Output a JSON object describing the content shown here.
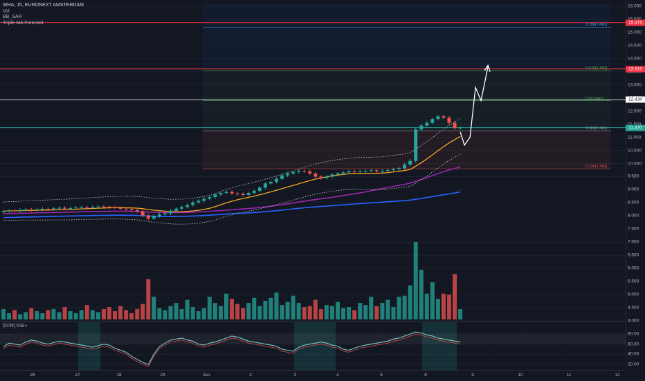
{
  "legend": {
    "symbol": "WHA, 1h, EURONEXT AMSTERDAM",
    "vol": "Vol",
    "bb_sar": "BB_SAR",
    "triple_ma": "Triple MA Forecast",
    "rsi": "[D7R] RSI+"
  },
  "colors": {
    "background": "#131722",
    "up": "#26a69a",
    "down": "#ef5350",
    "orange_ma": "#f5a623",
    "purple_ma": "#9c27b0",
    "blue_ma": "#2962ff",
    "resistance_line": "#f23645",
    "fib_line": "#4caf50"
  },
  "price_axis": {
    "ticks": [
      "16.000",
      "15.500",
      "15.000",
      "14.500",
      "14.000",
      "13.500",
      "13.000",
      "12.500",
      "12.000",
      "11.500",
      "11.000",
      "10.500",
      "10.000",
      "9.500",
      "9.000",
      "8.500",
      "8.000",
      "7.500",
      "7.000",
      "6.500",
      "6.000",
      "5.500",
      "5.000",
      "4.500",
      "4.000"
    ],
    "badges": [
      {
        "label": "15.375",
        "color": "#f23645",
        "price": 15.375
      },
      {
        "label": "13.610",
        "color": "#f23645",
        "price": 13.61
      },
      {
        "label": "12.430",
        "color": "#ffffff",
        "text": "#131722",
        "price": 12.43
      },
      {
        "label": "11.370",
        "color": "#26a69a",
        "price": 11.37
      }
    ]
  },
  "rsi_axis": {
    "ticks": [
      "80.00",
      "60.00",
      "40.00",
      "20.00"
    ]
  },
  "time_axis": {
    "labels": [
      "26",
      "27",
      "28",
      "29",
      "Jun",
      "2",
      "3",
      "4",
      "5",
      "8",
      "9",
      "10",
      "11",
      "12"
    ]
  },
  "fib_labels": [
    {
      "label": "0.786(7.490)",
      "price": 15.2,
      "color": "#42a5f5"
    },
    {
      "label": "0.618(7.490)",
      "price": 13.55,
      "color": "#4caf50"
    },
    {
      "label": "0.5(7.490)",
      "price": 12.4,
      "color": "#4caf50"
    },
    {
      "label": "0.382(7.490)",
      "price": 11.25,
      "color": "#9ea3ac"
    },
    {
      "label": "0.236(7.490)",
      "price": 9.8,
      "color": "#ef5350"
    }
  ],
  "chart_data": {
    "type": "candlestick",
    "symbol": "WHA",
    "interval": "1h",
    "exchange": "EURONEXT AMSTERDAM",
    "ylim": [
      7.5,
      16.1
    ],
    "last_price": 11.37,
    "horizontal_levels": [
      15.375,
      13.61,
      12.43,
      11.37
    ],
    "fib_levels": [
      {
        "ratio": "0.786",
        "price": 15.2
      },
      {
        "ratio": "0.618",
        "price": 13.55
      },
      {
        "ratio": "0.5",
        "price": 12.4
      },
      {
        "ratio": "0.382",
        "price": 11.25
      },
      {
        "ratio": "0.236",
        "price": 9.8
      }
    ],
    "closes": [
      8.18,
      8.21,
      8.19,
      8.23,
      8.24,
      8.22,
      8.25,
      8.27,
      8.26,
      8.29,
      8.31,
      8.28,
      8.3,
      8.32,
      8.33,
      8.31,
      8.34,
      8.36,
      8.35,
      8.33,
      8.3,
      8.28,
      8.26,
      8.22,
      8.18,
      8.02,
      7.9,
      8.0,
      8.06,
      8.1,
      8.2,
      8.28,
      8.34,
      8.42,
      8.52,
      8.58,
      8.66,
      8.72,
      8.82,
      8.88,
      8.92,
      8.86,
      8.84,
      8.8,
      8.88,
      8.96,
      9.08,
      9.24,
      9.3,
      9.42,
      9.55,
      9.62,
      9.68,
      9.72,
      9.7,
      9.62,
      9.5,
      9.45,
      9.5,
      9.58,
      9.62,
      9.66,
      9.7,
      9.68,
      9.7,
      9.72,
      9.74,
      9.7,
      9.72,
      9.75,
      9.78,
      9.82,
      9.96,
      10.1,
      11.3,
      11.45,
      11.55,
      11.7,
      11.8,
      11.75,
      11.55,
      11.35,
      11.37
    ],
    "volume": [
      1.0,
      0.6,
      0.9,
      0.5,
      0.7,
      1.1,
      0.8,
      0.6,
      0.9,
      1.0,
      0.7,
      1.2,
      0.8,
      0.6,
      0.9,
      1.4,
      0.9,
      0.7,
      1.0,
      1.2,
      0.8,
      1.3,
      0.9,
      0.6,
      1.0,
      1.5,
      3.9,
      2.2,
      1.1,
      0.9,
      1.3,
      1.6,
      1.0,
      1.9,
      1.2,
      0.8,
      1.1,
      2.2,
      1.6,
      1.3,
      2.5,
      2.0,
      1.5,
      1.1,
      1.6,
      2.1,
      1.3,
      1.8,
      2.1,
      2.6,
      1.4,
      1.7,
      2.3,
      1.6,
      1.2,
      1.3,
      1.9,
      1.0,
      1.4,
      1.3,
      1.7,
      1.1,
      1.2,
      0.9,
      1.6,
      1.4,
      2.2,
      1.3,
      1.6,
      1.9,
      1.2,
      2.2,
      2.3,
      3.3,
      7.5,
      4.8,
      2.5,
      3.6,
      2.0,
      2.5,
      2.4,
      4.4,
      1.0
    ],
    "rsi": [
      55,
      62,
      60,
      58,
      64,
      68,
      66,
      62,
      60,
      63,
      66,
      64,
      62,
      60,
      58,
      56,
      54,
      57,
      60,
      58,
      52,
      48,
      44,
      36,
      30,
      24,
      20,
      40,
      55,
      62,
      68,
      70,
      72,
      68,
      66,
      60,
      58,
      62,
      64,
      68,
      72,
      76,
      74,
      70,
      66,
      64,
      62,
      60,
      58,
      56,
      50,
      48,
      46,
      54,
      58,
      60,
      62,
      64,
      62,
      58,
      56,
      50,
      48,
      52,
      56,
      58,
      60,
      62,
      64,
      66,
      70,
      72,
      76,
      80,
      84,
      82,
      78,
      76,
      72,
      70,
      68,
      66,
      64
    ]
  }
}
